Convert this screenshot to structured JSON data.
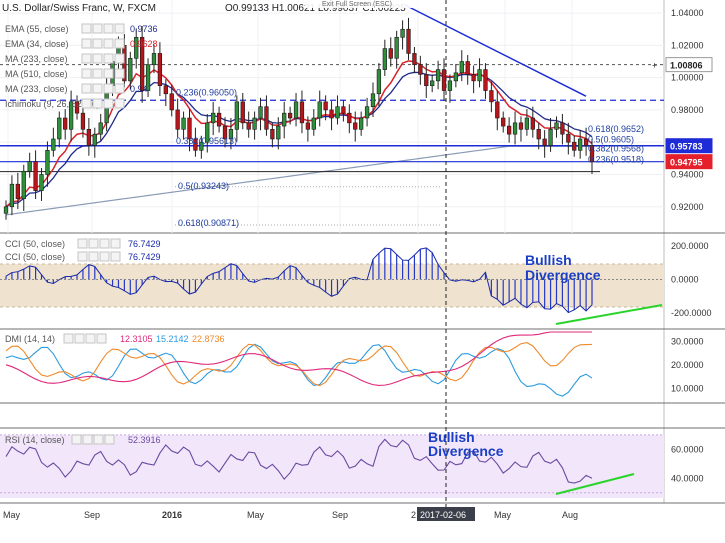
{
  "header": {
    "symbol_line": "U.S. Dollar/Swiss Franc, W, FXCM",
    "ohlc": "O0.99133  H1.00621  L0.99037  C1.00225",
    "exit_full_screen": "Exit Full Screen (ESC)"
  },
  "legend": {
    "main": [
      "EMA (55, close)",
      "EMA (34, close)",
      "MA (233, close)",
      "MA (510, close)",
      "MA (233, close)",
      "Ichimoku (9, 26, 52, 26)"
    ],
    "main_values": [
      "0.9736",
      "0.9628",
      "",
      "",
      "0.94",
      ""
    ],
    "cci": [
      "CCI (50, close)",
      "CCI (50, close)"
    ],
    "cci_value": "76.7429",
    "dmi_label": "DMI (14, 14)",
    "dmi_values": [
      "12.3105",
      "15.2142",
      "22.8736"
    ],
    "rsi_label": "RSI (14, close)",
    "rsi_value": "52.3916"
  },
  "price_axis": {
    "ticks": [
      "1.04000",
      "1.02000",
      "1.00000",
      "0.98000",
      "0.96000",
      "0.94000",
      "0.92000"
    ],
    "badges": [
      {
        "text": "1.00806",
        "color": "#ffffff",
        "text_color": "#222222"
      },
      {
        "text": "0.95783",
        "color": "#1e2bd6",
        "text_color": "#ffffff"
      },
      {
        "text": "0.94795",
        "color": "#e5202a",
        "text_color": "#ffffff"
      }
    ]
  },
  "fib_labels": [
    "0.618(0.9652)",
    "0.5(0.9605)",
    "0.382(0.9568)",
    "0.236(0.9518)",
    "0.236(0.96050)",
    "0.382(0.95613)",
    "0.5(0.93243)",
    "0.618(0.90871)"
  ],
  "cci_axis": [
    "200.0000",
    "0.0000",
    "-200.0000"
  ],
  "dmi_axis": [
    "30.0000",
    "20.0000",
    "10.0000"
  ],
  "rsi_axis": [
    "60.0000",
    "40.0000"
  ],
  "annotations": {
    "cci": "Bullish\nDivergence",
    "rsi": "Bullish\nDivergence"
  },
  "time_axis": [
    "May",
    "Sep",
    "2016",
    "May",
    "Sep",
    "2",
    "2017-02-06",
    "May",
    "Aug"
  ],
  "colors": {
    "cci_band": "#efe3cf",
    "rsi_band": "#f2e6fa",
    "ema55": "#1f2a8c",
    "ema34": "#d8232a",
    "ma233": "#8a9bb5",
    "trend_blue": "#1e2bd6",
    "trend_green": "#29d42a"
  },
  "chart_data": {
    "type": "candlestick",
    "series": [
      {
        "name": "U.S. Dollar/Swiss Franc, W, FXCM",
        "period": "weekly",
        "close_path": [
          0.92,
          0.934,
          0.925,
          0.942,
          0.948,
          0.93,
          0.94,
          0.955,
          0.962,
          0.975,
          0.968,
          0.985,
          0.978,
          0.968,
          0.958,
          0.965,
          0.972,
          0.995,
          1.01,
          1.02,
          0.998,
          1.012,
          1.025,
          0.992,
          1.008,
          1.015,
          0.995,
          0.99,
          0.98,
          0.968,
          0.975,
          0.962,
          0.955,
          0.96,
          0.972,
          0.978,
          0.97,
          0.962,
          0.968,
          0.985,
          0.972,
          0.968,
          0.975,
          0.982,
          0.968,
          0.962,
          0.97,
          0.978,
          0.975,
          0.985,
          0.972,
          0.968,
          0.975,
          0.985,
          0.98,
          0.975,
          0.982,
          0.978,
          0.972,
          0.968,
          0.975,
          0.982,
          0.99,
          1.005,
          1.018,
          1.012,
          1.025,
          1.03,
          1.015,
          1.008,
          1.002,
          0.995,
          0.998,
          1.005,
          0.992,
          0.998,
          1.003,
          1.01,
          1.002,
          0.998,
          1.005,
          0.992,
          0.985,
          0.975,
          0.97,
          0.965,
          0.972,
          0.968,
          0.975,
          0.968,
          0.962,
          0.958,
          0.968,
          0.972,
          0.965,
          0.96,
          0.955,
          0.962,
          0.958,
          0.9479
        ]
      },
      {
        "name": "EMA (55, close)"
      },
      {
        "name": "EMA (34, close)"
      },
      {
        "name": "MA (233, close)"
      }
    ],
    "last_values": {
      "EMA (55, close)": 0.9736,
      "EMA (34, close)": 0.9628,
      "close": 0.94795
    },
    "price_range": [
      0.905,
      1.045
    ],
    "price_lines": [
      1.00806,
      0.95783,
      0.94795,
      0.986
    ],
    "cci": {
      "range": [
        -270,
        235
      ],
      "band": [
        -100,
        100
      ],
      "last": 76.7429
    },
    "dmi": {
      "range": [
        5,
        34
      ],
      "values": [
        12.3105,
        15.2142,
        22.8736
      ]
    },
    "rsi": {
      "range": [
        25,
        72
      ],
      "band": [
        30,
        70
      ],
      "last": 52.3916
    }
  }
}
